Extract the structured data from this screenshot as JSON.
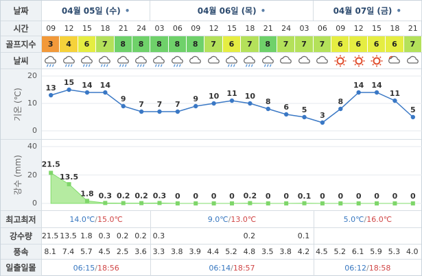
{
  "labels": {
    "date": "날짜",
    "time": "시간",
    "golf_index": "골프지수",
    "weather": "날씨",
    "temperature_axis": "기온 (℃)",
    "rain_axis": "강수 (mm)",
    "min_max": "최고최저",
    "precip": "강수량",
    "wind": "풍속",
    "sunrise_sunset": "일출일몰"
  },
  "days": [
    {
      "label": "04월 05일 (수)",
      "count": 6
    },
    {
      "label": "04월 06일 (목)",
      "count": 9
    },
    {
      "label": "04월 07일 (금)",
      "count": 6
    }
  ],
  "hours": [
    "09",
    "12",
    "15",
    "18",
    "21",
    "24",
    "03",
    "06",
    "09",
    "12",
    "15",
    "18",
    "21",
    "24",
    "03",
    "06",
    "09",
    "12",
    "15",
    "18",
    "21"
  ],
  "golf_index": [
    "3",
    "4",
    "6",
    "7",
    "8",
    "8",
    "8",
    "8",
    "8",
    "7",
    "6",
    "7",
    "8",
    "7",
    "7",
    "7",
    "6",
    "6",
    "6",
    "6",
    "7"
  ],
  "golf_colors": {
    "3": "#f2993a",
    "4": "#f6d23b",
    "6": "#e5ed42",
    "7": "#b4e15a",
    "8": "#6fd16a"
  },
  "weather_icons": [
    "rain-icon",
    "rain-icon",
    "rain-icon",
    "rain-icon",
    "rain-icon",
    "rain-icon",
    "rain-icon",
    "rain-icon",
    "cloudy-icon",
    "cloudy-icon",
    "rain-icon",
    "rain-icon",
    "rain-icon",
    "cloudy-icon",
    "cloudy-icon",
    "cloudy-icon",
    "sun-icon",
    "sun-icon",
    "sun-icon",
    "partly-cloudy-icon",
    "cloudy-icon"
  ],
  "chart_data": [
    {
      "type": "line",
      "x": [
        "09",
        "12",
        "15",
        "18",
        "21",
        "24",
        "03",
        "06",
        "09",
        "12",
        "15",
        "18",
        "21",
        "24",
        "03",
        "06",
        "09",
        "12",
        "15",
        "18",
        "21"
      ],
      "series": [
        {
          "values": [
            13,
            15,
            14,
            14,
            9,
            7,
            7,
            7,
            9,
            10,
            11,
            10,
            8,
            6,
            5,
            3,
            8,
            14,
            14,
            11,
            5
          ]
        }
      ],
      "ylabel": "기온 (℃)",
      "ylim": [
        0,
        20
      ],
      "yticks": [
        0,
        10,
        20
      ],
      "grid": true,
      "color": "#3a78c5"
    },
    {
      "type": "area",
      "x": [
        "09",
        "12",
        "15",
        "18",
        "21",
        "24",
        "03",
        "06",
        "09",
        "12",
        "15",
        "18",
        "21",
        "24",
        "03",
        "06",
        "09",
        "12",
        "15",
        "18",
        "21"
      ],
      "series": [
        {
          "values": [
            21.5,
            13.5,
            1.8,
            0.3,
            0.2,
            0.2,
            0.3,
            0,
            0,
            0,
            0,
            0.2,
            0,
            0,
            0.1,
            0,
            0,
            0,
            0,
            0,
            0
          ]
        }
      ],
      "data_labels": [
        "21.5",
        "13.5",
        "1.8",
        "0.3",
        "0.2",
        "0.2",
        "0.3",
        "0",
        "0",
        "0",
        "0",
        "0.2",
        "0",
        "0",
        "0.1",
        "0",
        "0",
        "0",
        "0",
        "0",
        "0"
      ],
      "ylabel": "강수 (mm)",
      "ylim": [
        0,
        40
      ],
      "yticks": [
        0,
        20,
        40
      ],
      "grid": true,
      "color": "#7fdc6a"
    }
  ],
  "min_max": [
    {
      "min": "14.0℃",
      "max": "15.0℃"
    },
    {
      "min": "9.0℃",
      "max": "13.0℃"
    },
    {
      "min": "5.0℃",
      "max": "16.0℃"
    }
  ],
  "precip": [
    "21.5",
    "13.5",
    "1.8",
    "0.3",
    "0.2",
    "0.2",
    "0.3",
    "",
    "",
    "",
    "",
    "0.2",
    "",
    "",
    "0.1",
    "",
    "",
    "",
    "",
    "",
    ""
  ],
  "wind": [
    "8.1",
    "7.4",
    "5.7",
    "4.5",
    "2.5",
    "3.6",
    "3.3",
    "3.8",
    "3.9",
    "4.4",
    "5.2",
    "4.8",
    "3.5",
    "3.8",
    "4.2",
    "4.5",
    "5.2",
    "6.1",
    "5.9",
    "5.3",
    "4.0"
  ],
  "sun": [
    {
      "rise": "06:15",
      "set": "18:56"
    },
    {
      "rise": "06:14",
      "set": "18:57"
    },
    {
      "rise": "06:12",
      "set": "18:58"
    }
  ]
}
